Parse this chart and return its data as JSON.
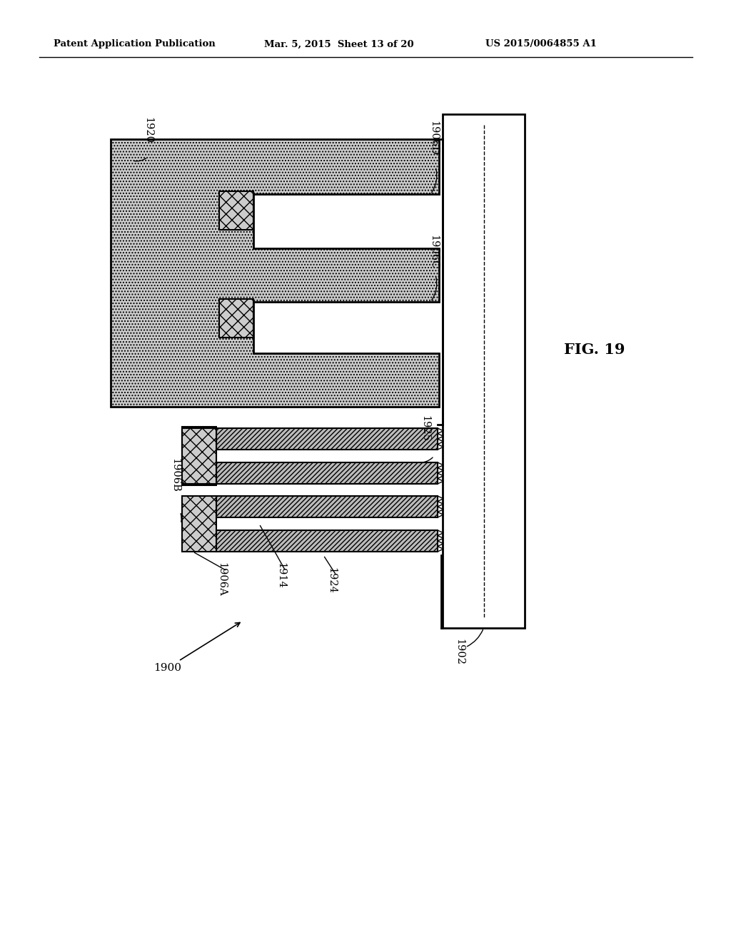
{
  "header_left": "Patent Application Publication",
  "header_mid": "Mar. 5, 2015  Sheet 13 of 20",
  "header_right": "US 2015/0064855 A1",
  "fig_label": "FIG. 19",
  "bg_color": "#ffffff"
}
